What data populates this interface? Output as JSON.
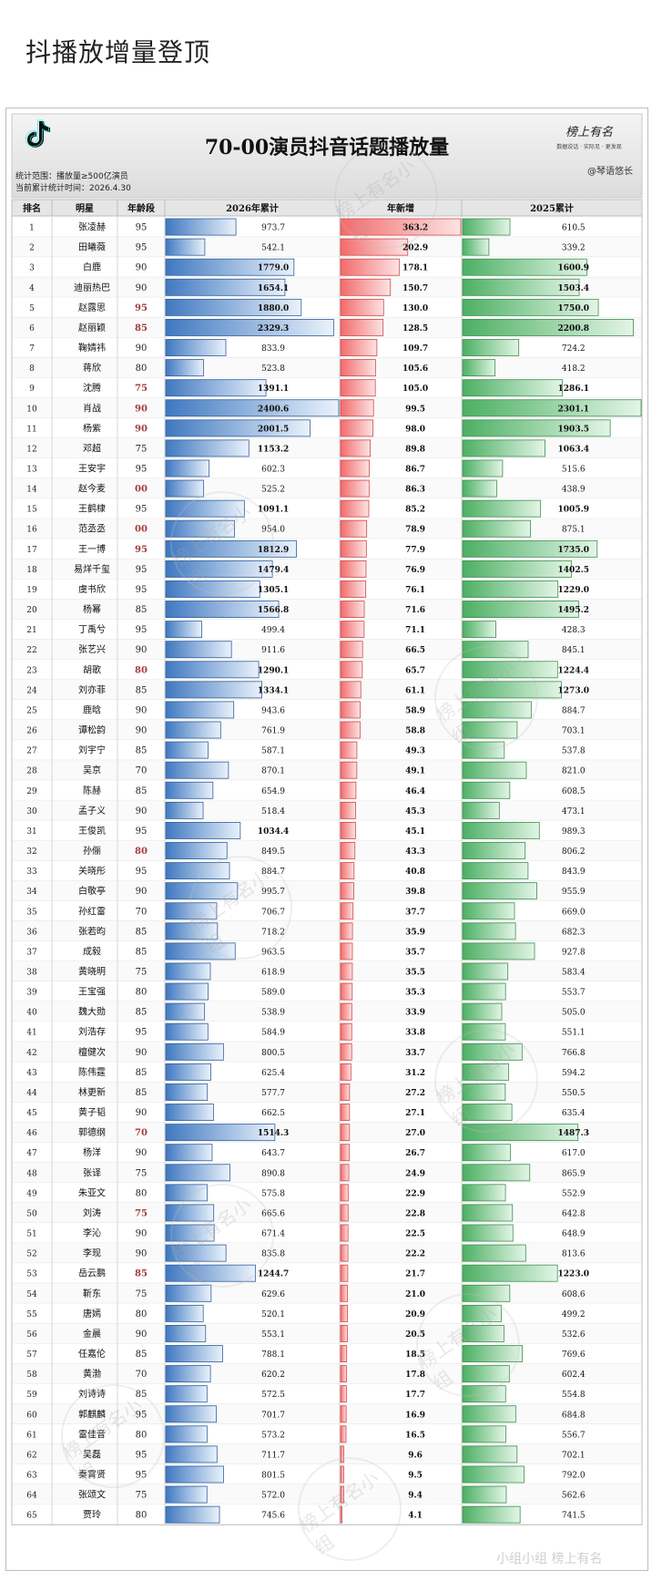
{
  "post_title": "抖播放增量登顶",
  "chart_data": {
    "type": "table",
    "title": "70-00演员抖音话题播放量",
    "logo_icon": "tiktok-note-icon",
    "brand_logo": "榜上有名",
    "brand_tagline": "数据说话 · 实际见 · 更发现",
    "credit": "@琴语悠长",
    "note_line1": "统计范围：播放量≥500亿演员",
    "note_line2": "当前累计统计时间：2026.4.30",
    "watermark": "榜上有名小组",
    "bottom_watermark": "小组小组 榜上有名",
    "columns": [
      "排名",
      "明星",
      "年龄段",
      "2026年累计",
      "年新增",
      "2025累计"
    ],
    "bar_max": {
      "cum2026": 2400.6,
      "added": 363.2,
      "cum2025": 2301.1
    },
    "colors": {
      "blue": "#4f86c6",
      "red": "#f08080",
      "green": "#5cb85c",
      "highlight": "#a33a3a"
    },
    "rows": [
      {
        "rank": "1",
        "name": "张凌赫",
        "age": "95",
        "age_hl": false,
        "cum2026": 973.7,
        "added": 363.2,
        "cum2025": 610.5
      },
      {
        "rank": "2",
        "name": "田曦薇",
        "age": "95",
        "age_hl": false,
        "cum2026": 542.1,
        "added": 202.9,
        "cum2025": 339.2
      },
      {
        "rank": "3",
        "name": "白鹿",
        "age": "90",
        "age_hl": false,
        "cum2026": 1779.0,
        "added": 178.1,
        "cum2025": 1600.9
      },
      {
        "rank": "4",
        "name": "迪丽热巴",
        "age": "90",
        "age_hl": false,
        "cum2026": 1654.1,
        "added": 150.7,
        "cum2025": 1503.4
      },
      {
        "rank": "5",
        "name": "赵露思",
        "age": "95",
        "age_hl": true,
        "cum2026": 1880.0,
        "added": 130.0,
        "cum2025": 1750.0
      },
      {
        "rank": "6",
        "name": "赵丽颖",
        "age": "85",
        "age_hl": true,
        "cum2026": 2329.3,
        "added": 128.5,
        "cum2025": 2200.8
      },
      {
        "rank": "7",
        "name": "鞠婧祎",
        "age": "90",
        "age_hl": false,
        "cum2026": 833.9,
        "added": 109.7,
        "cum2025": 724.2
      },
      {
        "rank": "8",
        "name": "蒋欣",
        "age": "80",
        "age_hl": false,
        "cum2026": 523.8,
        "added": 105.6,
        "cum2025": 418.2
      },
      {
        "rank": "9",
        "name": "沈腾",
        "age": "75",
        "age_hl": true,
        "cum2026": 1391.1,
        "added": 105.0,
        "cum2025": 1286.1
      },
      {
        "rank": "10",
        "name": "肖战",
        "age": "90",
        "age_hl": true,
        "cum2026": 2400.6,
        "added": 99.5,
        "cum2025": 2301.1
      },
      {
        "rank": "11",
        "name": "杨紫",
        "age": "90",
        "age_hl": true,
        "cum2026": 2001.5,
        "added": 98.0,
        "cum2025": 1903.5
      },
      {
        "rank": "12",
        "name": "邓超",
        "age": "75",
        "age_hl": false,
        "cum2026": 1153.2,
        "added": 89.8,
        "cum2025": 1063.4
      },
      {
        "rank": "13",
        "name": "王安宇",
        "age": "95",
        "age_hl": false,
        "cum2026": 602.3,
        "added": 86.7,
        "cum2025": 515.6
      },
      {
        "rank": "14",
        "name": "赵今麦",
        "age": "00",
        "age_hl": true,
        "cum2026": 525.2,
        "added": 86.3,
        "cum2025": 438.9
      },
      {
        "rank": "15",
        "name": "王鹤棣",
        "age": "95",
        "age_hl": false,
        "cum2026": 1091.1,
        "added": 85.2,
        "cum2025": 1005.9
      },
      {
        "rank": "16",
        "name": "范丞丞",
        "age": "00",
        "age_hl": true,
        "cum2026": 954.0,
        "added": 78.9,
        "cum2025": 875.1
      },
      {
        "rank": "17",
        "name": "王一博",
        "age": "95",
        "age_hl": true,
        "cum2026": 1812.9,
        "added": 77.9,
        "cum2025": 1735.0
      },
      {
        "rank": "18",
        "name": "易烊千玺",
        "age": "95",
        "age_hl": false,
        "cum2026": 1479.4,
        "added": 76.9,
        "cum2025": 1402.5
      },
      {
        "rank": "19",
        "name": "虞书欣",
        "age": "95",
        "age_hl": false,
        "cum2026": 1305.1,
        "added": 76.1,
        "cum2025": 1229.0
      },
      {
        "rank": "20",
        "name": "杨幂",
        "age": "85",
        "age_hl": false,
        "cum2026": 1566.8,
        "added": 71.6,
        "cum2025": 1495.2
      },
      {
        "rank": "21",
        "name": "丁禹兮",
        "age": "95",
        "age_hl": false,
        "cum2026": 499.4,
        "added": 71.1,
        "cum2025": 428.3
      },
      {
        "rank": "22",
        "name": "张艺兴",
        "age": "90",
        "age_hl": false,
        "cum2026": 911.6,
        "added": 66.5,
        "cum2025": 845.1
      },
      {
        "rank": "23",
        "name": "胡歌",
        "age": "80",
        "age_hl": true,
        "cum2026": 1290.1,
        "added": 65.7,
        "cum2025": 1224.4
      },
      {
        "rank": "24",
        "name": "刘亦菲",
        "age": "85",
        "age_hl": false,
        "cum2026": 1334.1,
        "added": 61.1,
        "cum2025": 1273.0
      },
      {
        "rank": "25",
        "name": "鹿晗",
        "age": "90",
        "age_hl": false,
        "cum2026": 943.6,
        "added": 58.9,
        "cum2025": 884.7
      },
      {
        "rank": "26",
        "name": "谭松韵",
        "age": "90",
        "age_hl": false,
        "cum2026": 761.9,
        "added": 58.8,
        "cum2025": 703.1
      },
      {
        "rank": "27",
        "name": "刘宇宁",
        "age": "85",
        "age_hl": false,
        "cum2026": 587.1,
        "added": 49.3,
        "cum2025": 537.8
      },
      {
        "rank": "28",
        "name": "吴京",
        "age": "70",
        "age_hl": false,
        "cum2026": 870.1,
        "added": 49.1,
        "cum2025": 821.0
      },
      {
        "rank": "29",
        "name": "陈赫",
        "age": "85",
        "age_hl": false,
        "cum2026": 654.9,
        "added": 46.4,
        "cum2025": 608.5
      },
      {
        "rank": "30",
        "name": "孟子义",
        "age": "90",
        "age_hl": false,
        "cum2026": 518.4,
        "added": 45.3,
        "cum2025": 473.1
      },
      {
        "rank": "31",
        "name": "王俊凯",
        "age": "95",
        "age_hl": false,
        "cum2026": 1034.4,
        "added": 45.1,
        "cum2025": 989.3
      },
      {
        "rank": "32",
        "name": "孙俪",
        "age": "80",
        "age_hl": true,
        "cum2026": 849.5,
        "added": 43.3,
        "cum2025": 806.2
      },
      {
        "rank": "33",
        "name": "关晓彤",
        "age": "95",
        "age_hl": false,
        "cum2026": 884.7,
        "added": 40.8,
        "cum2025": 843.9
      },
      {
        "rank": "34",
        "name": "白敬亭",
        "age": "90",
        "age_hl": false,
        "cum2026": 995.7,
        "added": 39.8,
        "cum2025": 955.9
      },
      {
        "rank": "35",
        "name": "孙红雷",
        "age": "70",
        "age_hl": false,
        "cum2026": 706.7,
        "added": 37.7,
        "cum2025": 669.0
      },
      {
        "rank": "36",
        "name": "张若昀",
        "age": "85",
        "age_hl": false,
        "cum2026": 718.2,
        "added": 35.9,
        "cum2025": 682.3
      },
      {
        "rank": "37",
        "name": "成毅",
        "age": "85",
        "age_hl": false,
        "cum2026": 963.5,
        "added": 35.7,
        "cum2025": 927.8
      },
      {
        "rank": "38",
        "name": "黄晓明",
        "age": "75",
        "age_hl": false,
        "cum2026": 618.9,
        "added": 35.5,
        "cum2025": 583.4
      },
      {
        "rank": "39",
        "name": "王宝强",
        "age": "80",
        "age_hl": false,
        "cum2026": 589.0,
        "added": 35.3,
        "cum2025": 553.7
      },
      {
        "rank": "40",
        "name": "魏大勋",
        "age": "85",
        "age_hl": false,
        "cum2026": 538.9,
        "added": 33.9,
        "cum2025": 505.0
      },
      {
        "rank": "41",
        "name": "刘浩存",
        "age": "95",
        "age_hl": false,
        "cum2026": 584.9,
        "added": 33.8,
        "cum2025": 551.1
      },
      {
        "rank": "42",
        "name": "檀健次",
        "age": "90",
        "age_hl": false,
        "cum2026": 800.5,
        "added": 33.7,
        "cum2025": 766.8
      },
      {
        "rank": "43",
        "name": "陈伟霆",
        "age": "85",
        "age_hl": false,
        "cum2026": 625.4,
        "added": 31.2,
        "cum2025": 594.2
      },
      {
        "rank": "44",
        "name": "林更新",
        "age": "85",
        "age_hl": false,
        "cum2026": 577.7,
        "added": 27.2,
        "cum2025": 550.5
      },
      {
        "rank": "45",
        "name": "黄子韬",
        "age": "90",
        "age_hl": false,
        "cum2026": 662.5,
        "added": 27.1,
        "cum2025": 635.4
      },
      {
        "rank": "46",
        "name": "郭德纲",
        "age": "70",
        "age_hl": true,
        "cum2026": 1514.3,
        "added": 27.0,
        "cum2025": 1487.3
      },
      {
        "rank": "47",
        "name": "杨洋",
        "age": "90",
        "age_hl": false,
        "cum2026": 643.7,
        "added": 26.7,
        "cum2025": 617.0
      },
      {
        "rank": "48",
        "name": "张译",
        "age": "75",
        "age_hl": false,
        "cum2026": 890.8,
        "added": 24.9,
        "cum2025": 865.9
      },
      {
        "rank": "49",
        "name": "朱亚文",
        "age": "80",
        "age_hl": false,
        "cum2026": 575.8,
        "added": 22.9,
        "cum2025": 552.9
      },
      {
        "rank": "50",
        "name": "刘涛",
        "age": "75",
        "age_hl": true,
        "cum2026": 665.6,
        "added": 22.8,
        "cum2025": 642.8
      },
      {
        "rank": "51",
        "name": "李沁",
        "age": "90",
        "age_hl": false,
        "cum2026": 671.4,
        "added": 22.5,
        "cum2025": 648.9
      },
      {
        "rank": "52",
        "name": "李现",
        "age": "90",
        "age_hl": false,
        "cum2026": 835.8,
        "added": 22.2,
        "cum2025": 813.6
      },
      {
        "rank": "53",
        "name": "岳云鹏",
        "age": "85",
        "age_hl": true,
        "cum2026": 1244.7,
        "added": 21.7,
        "cum2025": 1223.0
      },
      {
        "rank": "54",
        "name": "靳东",
        "age": "75",
        "age_hl": false,
        "cum2026": 629.6,
        "added": 21.0,
        "cum2025": 608.6
      },
      {
        "rank": "55",
        "name": "唐嫣",
        "age": "80",
        "age_hl": false,
        "cum2026": 520.1,
        "added": 20.9,
        "cum2025": 499.2
      },
      {
        "rank": "56",
        "name": "金晨",
        "age": "90",
        "age_hl": false,
        "cum2026": 553.1,
        "added": 20.5,
        "cum2025": 532.6
      },
      {
        "rank": "57",
        "name": "任嘉伦",
        "age": "85",
        "age_hl": false,
        "cum2026": 788.1,
        "added": 18.5,
        "cum2025": 769.6
      },
      {
        "rank": "58",
        "name": "黄渤",
        "age": "70",
        "age_hl": false,
        "cum2026": 620.2,
        "added": 17.8,
        "cum2025": 602.4
      },
      {
        "rank": "59",
        "name": "刘诗诗",
        "age": "85",
        "age_hl": false,
        "cum2026": 572.5,
        "added": 17.7,
        "cum2025": 554.8
      },
      {
        "rank": "60",
        "name": "郭麒麟",
        "age": "95",
        "age_hl": false,
        "cum2026": 701.7,
        "added": 16.9,
        "cum2025": 684.8
      },
      {
        "rank": "61",
        "name": "雷佳音",
        "age": "80",
        "age_hl": false,
        "cum2026": 573.2,
        "added": 16.5,
        "cum2025": 556.7
      },
      {
        "rank": "62",
        "name": "吴磊",
        "age": "95",
        "age_hl": false,
        "cum2026": 711.7,
        "added": 9.6,
        "cum2025": 702.1
      },
      {
        "rank": "63",
        "name": "秦霄贤",
        "age": "95",
        "age_hl": false,
        "cum2026": 801.5,
        "added": 9.5,
        "cum2025": 792.0
      },
      {
        "rank": "64",
        "name": "张颂文",
        "age": "75",
        "age_hl": false,
        "cum2026": 572.0,
        "added": 9.4,
        "cum2025": 562.6
      },
      {
        "rank": "65",
        "name": "贾玲",
        "age": "80",
        "age_hl": false,
        "cum2026": 745.6,
        "added": 4.1,
        "cum2025": 741.5
      }
    ]
  }
}
